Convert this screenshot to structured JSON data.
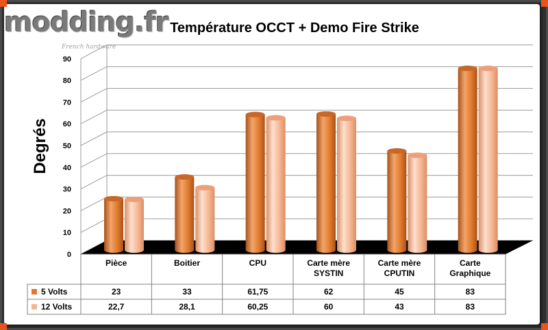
{
  "logo": {
    "text": "modding.fr",
    "tagline": "French hardware"
  },
  "colors": {
    "series1": "#e07a2c",
    "series2": "#f6b590",
    "floor": "#000000",
    "frame": "#2e2e2e",
    "accent": "#e8541c"
  },
  "chart_data": {
    "type": "bar",
    "title": "Température OCCT + Demo Fire Strike",
    "ylabel": "Degrés",
    "xlabel": "",
    "ylim": [
      0,
      90
    ],
    "yticks": [
      0,
      10,
      20,
      30,
      40,
      50,
      60,
      70,
      80,
      90
    ],
    "grid": true,
    "categories": [
      "Pièce",
      "Boitier",
      "CPU",
      "Carte mère SYSTIN",
      "Carte mère CPUTIN",
      "Carte Graphique"
    ],
    "category_lines": [
      [
        "Pièce"
      ],
      [
        "Boitier"
      ],
      [
        "CPU"
      ],
      [
        "Carte mère",
        "SYSTIN"
      ],
      [
        "Carte mère",
        "CPUTIN"
      ],
      [
        "Carte",
        "Graphique"
      ]
    ],
    "series": [
      {
        "name": "5 Volts",
        "values": [
          23,
          33,
          61.75,
          62,
          45,
          83
        ],
        "labels": [
          "23",
          "33",
          "61,75",
          "62",
          "45",
          "83"
        ]
      },
      {
        "name": "12 Volts",
        "values": [
          22.7,
          28.1,
          60.25,
          60,
          43,
          83
        ],
        "labels": [
          "22,7",
          "28,1",
          "60,25",
          "60",
          "43",
          "83"
        ]
      }
    ]
  }
}
